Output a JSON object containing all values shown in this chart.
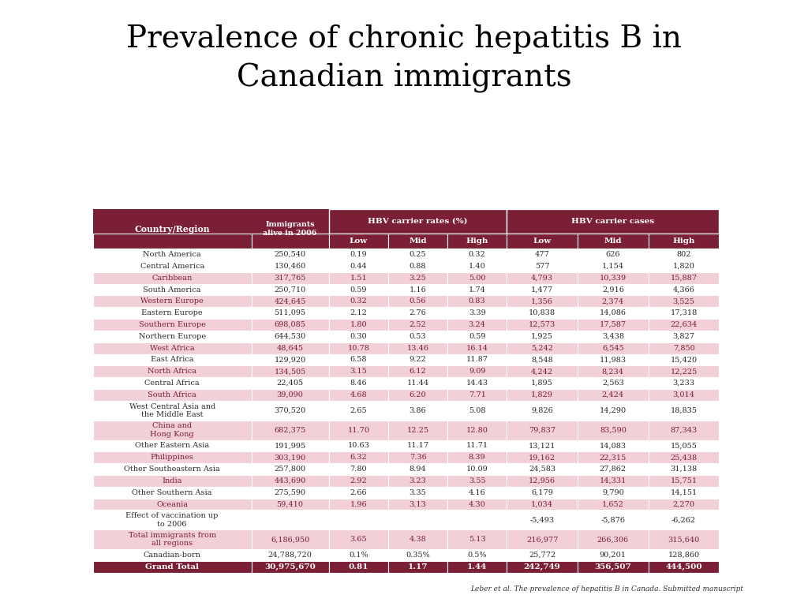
{
  "title": "Prevalence of chronic hepatitis B in\nCanadian immigrants",
  "title_fontsize": 28,
  "footnote": "Leber et al. The prevalence of hepatitis B in Canada. Submitted manuscript",
  "header_bg": "#7B1F35",
  "header_text": "#FFFFFF",
  "row_bg_light": "#F2D0D8",
  "row_bg_white": "#FFFFFF",
  "grand_total_bg": "#7B1F35",
  "grand_total_text": "#FFFFFF",
  "columns": [
    "Country/Region",
    "Immigrants\nalive in 2006",
    "Low",
    "Mid",
    "High",
    "Low",
    "Mid",
    "High"
  ],
  "rows": [
    {
      "region": "North America",
      "immigrants": "250,540",
      "hbv_low": "0.19",
      "hbv_mid": "0.25",
      "hbv_high": "0.32",
      "cases_low": "477",
      "cases_mid": "626",
      "cases_high": "802",
      "shaded": false,
      "multiline": false
    },
    {
      "region": "Central America",
      "immigrants": "130,460",
      "hbv_low": "0.44",
      "hbv_mid": "0.88",
      "hbv_high": "1.40",
      "cases_low": "577",
      "cases_mid": "1,154",
      "cases_high": "1,820",
      "shaded": false,
      "multiline": false
    },
    {
      "region": "Caribbean",
      "immigrants": "317,765",
      "hbv_low": "1.51",
      "hbv_mid": "3.25",
      "hbv_high": "5.00",
      "cases_low": "4,793",
      "cases_mid": "10,339",
      "cases_high": "15,887",
      "shaded": true,
      "multiline": false
    },
    {
      "region": "South America",
      "immigrants": "250,710",
      "hbv_low": "0.59",
      "hbv_mid": "1.16",
      "hbv_high": "1.74",
      "cases_low": "1,477",
      "cases_mid": "2,916",
      "cases_high": "4,366",
      "shaded": false,
      "multiline": false
    },
    {
      "region": "Western Europe",
      "immigrants": "424,645",
      "hbv_low": "0.32",
      "hbv_mid": "0.56",
      "hbv_high": "0.83",
      "cases_low": "1,356",
      "cases_mid": "2,374",
      "cases_high": "3,525",
      "shaded": true,
      "multiline": false
    },
    {
      "region": "Eastern Europe",
      "immigrants": "511,095",
      "hbv_low": "2.12",
      "hbv_mid": "2.76",
      "hbv_high": "3.39",
      "cases_low": "10,838",
      "cases_mid": "14,086",
      "cases_high": "17,318",
      "shaded": false,
      "multiline": false
    },
    {
      "region": "Southern Europe",
      "immigrants": "698,085",
      "hbv_low": "1.80",
      "hbv_mid": "2.52",
      "hbv_high": "3.24",
      "cases_low": "12,573",
      "cases_mid": "17,587",
      "cases_high": "22,634",
      "shaded": true,
      "multiline": false
    },
    {
      "region": "Northern Europe",
      "immigrants": "644,530",
      "hbv_low": "0.30",
      "hbv_mid": "0.53",
      "hbv_high": "0.59",
      "cases_low": "1,925",
      "cases_mid": "3,438",
      "cases_high": "3,827",
      "shaded": false,
      "multiline": false
    },
    {
      "region": "West Africa",
      "immigrants": "48,645",
      "hbv_low": "10.78",
      "hbv_mid": "13.46",
      "hbv_high": "16.14",
      "cases_low": "5,242",
      "cases_mid": "6,545",
      "cases_high": "7,850",
      "shaded": true,
      "multiline": false
    },
    {
      "region": "East Africa",
      "immigrants": "129,920",
      "hbv_low": "6.58",
      "hbv_mid": "9.22",
      "hbv_high": "11.87",
      "cases_low": "8,548",
      "cases_mid": "11,983",
      "cases_high": "15,420",
      "shaded": false,
      "multiline": false
    },
    {
      "region": "North Africa",
      "immigrants": "134,505",
      "hbv_low": "3.15",
      "hbv_mid": "6.12",
      "hbv_high": "9.09",
      "cases_low": "4,242",
      "cases_mid": "8,234",
      "cases_high": "12,225",
      "shaded": true,
      "multiline": false
    },
    {
      "region": "Central Africa",
      "immigrants": "22,405",
      "hbv_low": "8.46",
      "hbv_mid": "11.44",
      "hbv_high": "14.43",
      "cases_low": "1,895",
      "cases_mid": "2,563",
      "cases_high": "3,233",
      "shaded": false,
      "multiline": false
    },
    {
      "region": "South Africa",
      "immigrants": "39,090",
      "hbv_low": "4.68",
      "hbv_mid": "6.20",
      "hbv_high": "7.71",
      "cases_low": "1,829",
      "cases_mid": "2,424",
      "cases_high": "3,014",
      "shaded": true,
      "multiline": false
    },
    {
      "region": "West Central Asia and\nthe Middle East",
      "immigrants": "370,520",
      "hbv_low": "2.65",
      "hbv_mid": "3.86",
      "hbv_high": "5.08",
      "cases_low": "9,826",
      "cases_mid": "14,290",
      "cases_high": "18,835",
      "shaded": false,
      "multiline": true
    },
    {
      "region": "China and\nHong Kong",
      "immigrants": "682,375",
      "hbv_low": "11.70",
      "hbv_mid": "12.25",
      "hbv_high": "12.80",
      "cases_low": "79,837",
      "cases_mid": "83,590",
      "cases_high": "87,343",
      "shaded": true,
      "multiline": true
    },
    {
      "region": "Other Eastern Asia",
      "immigrants": "191,995",
      "hbv_low": "10.63",
      "hbv_mid": "11.17",
      "hbv_high": "11.71",
      "cases_low": "13,121",
      "cases_mid": "14,083",
      "cases_high": "15,055",
      "shaded": false,
      "multiline": false
    },
    {
      "region": "Philippines",
      "immigrants": "303,190",
      "hbv_low": "6.32",
      "hbv_mid": "7.36",
      "hbv_high": "8.39",
      "cases_low": "19,162",
      "cases_mid": "22,315",
      "cases_high": "25,438",
      "shaded": true,
      "multiline": false
    },
    {
      "region": "Other Southeastern Asia",
      "immigrants": "257,800",
      "hbv_low": "7.80",
      "hbv_mid": "8.94",
      "hbv_high": "10.09",
      "cases_low": "24,583",
      "cases_mid": "27,862",
      "cases_high": "31,138",
      "shaded": false,
      "multiline": false
    },
    {
      "region": "India",
      "immigrants": "443,690",
      "hbv_low": "2.92",
      "hbv_mid": "3.23",
      "hbv_high": "3.55",
      "cases_low": "12,956",
      "cases_mid": "14,331",
      "cases_high": "15,751",
      "shaded": true,
      "multiline": false
    },
    {
      "region": "Other Southern Asia",
      "immigrants": "275,590",
      "hbv_low": "2.66",
      "hbv_mid": "3.35",
      "hbv_high": "4.16",
      "cases_low": "6,179",
      "cases_mid": "9,790",
      "cases_high": "14,151",
      "shaded": false,
      "multiline": false
    },
    {
      "region": "Oceania",
      "immigrants": "59,410",
      "hbv_low": "1.96",
      "hbv_mid": "3.13",
      "hbv_high": "4.30",
      "cases_low": "1,034",
      "cases_mid": "1,652",
      "cases_high": "2,270",
      "shaded": true,
      "multiline": false
    },
    {
      "region": "Effect of vaccination up\nto 2006",
      "immigrants": "",
      "hbv_low": "",
      "hbv_mid": "",
      "hbv_high": "",
      "cases_low": "-5,493",
      "cases_mid": "-5,876",
      "cases_high": "-6,262",
      "shaded": false,
      "multiline": true
    },
    {
      "region": "Total immigrants from\nall regions",
      "immigrants": "6,186,950",
      "hbv_low": "3.65",
      "hbv_mid": "4.38",
      "hbv_high": "5.13",
      "cases_low": "216,977",
      "cases_mid": "266,306",
      "cases_high": "315,640",
      "shaded": true,
      "multiline": true
    },
    {
      "region": "Canadian-born",
      "immigrants": "24,788,720",
      "hbv_low": "0.1%",
      "hbv_mid": "0.35%",
      "hbv_high": "0.5%",
      "cases_low": "25,772",
      "cases_mid": "90,201",
      "cases_high": "128,860",
      "shaded": false,
      "multiline": false
    },
    {
      "region": "Grand Total",
      "immigrants": "30,975,670",
      "hbv_low": "0.81",
      "hbv_mid": "1.17",
      "hbv_high": "1.44",
      "cases_low": "242,749",
      "cases_mid": "356,507",
      "cases_high": "444,500",
      "shaded": false,
      "multiline": false,
      "grand_total": true
    }
  ]
}
